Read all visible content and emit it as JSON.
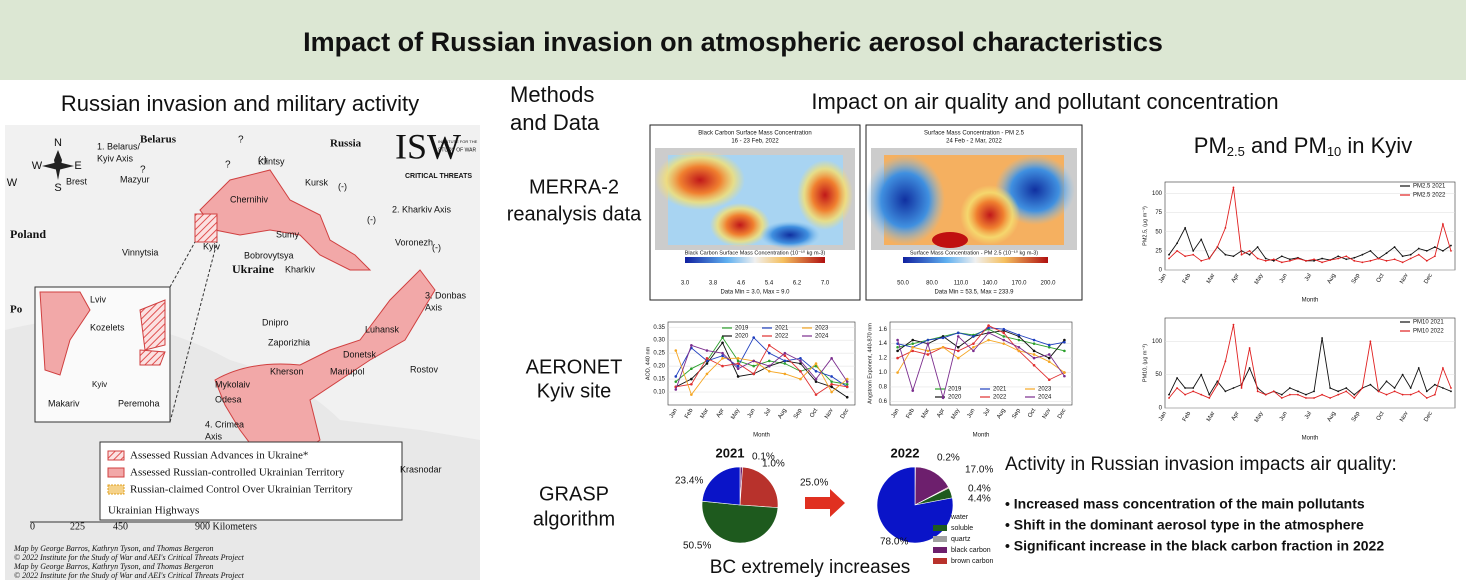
{
  "header": {
    "title": "Impact of Russian invasion on atmospheric aerosol characteristics"
  },
  "sections": {
    "left": "Russian invasion and military activity",
    "methods": [
      "Methods",
      "and Data"
    ],
    "right": "Impact on air quality and pollutant concentration"
  },
  "methods": [
    [
      "MERRA-2",
      "reanalysis data"
    ],
    [
      "AERONET",
      "Kyiv site"
    ],
    [
      "GRASP",
      "algorithm"
    ]
  ],
  "map": {
    "labels": [
      "Belarus",
      "Russia",
      "Poland",
      "Po",
      "Ukraine",
      "Lviv",
      "Vinnytsia",
      "Kyiv",
      "Chernihiv",
      "Sumy",
      "Kharkiv",
      "Kursk",
      "Klintsy",
      "Voronezh",
      "Bobrovytsya",
      "Brest",
      "Mazyur",
      "Dnipro",
      "Zaporizhia",
      "Donetsk",
      "Luhansk",
      "Mariupol",
      "Kherson",
      "Mykolaiv",
      "Odesa",
      "Rostov",
      "Krasnodar",
      "Kozelets",
      "Kyiv",
      "Makariv",
      "Peremoha",
      "?",
      "?",
      "?",
      "(-)",
      "(-)",
      "(-)",
      "(-)"
    ],
    "axes": [
      [
        "1. Belarus/",
        "Kyiv Axis"
      ],
      [
        "2. Kharkiv Axis"
      ],
      [
        "3. Donbas",
        "Axis"
      ],
      [
        "4. Crimea",
        "Axis"
      ]
    ],
    "compass": [
      "N",
      "S",
      "E",
      "W",
      "W"
    ],
    "logo": [
      "ISW",
      "INSTITUTE FOR THE",
      "STUDY OF WAR",
      "CRITICAL THREATS"
    ],
    "legend": [
      "Assessed Russian Advances in Ukraine*",
      "Assessed Russian-controlled Ukrainian Territory",
      "Russian-claimed Control Over Ukrainian Territory",
      "Ukrainian Highways"
    ],
    "scale": [
      "0",
      "225",
      "450",
      "900 Kilometers"
    ],
    "credits": [
      "Map by George Barros, Kathryn Tyson, and Thomas Bergeron",
      "© 2022 Institute for the Study of War and AEI's Critical Threats Project",
      "Map by George Barros, Kathryn Tyson, and Thomas Bergeron",
      "© 2022 Institute for the Study of War and AEI's Critical Threats Project"
    ]
  },
  "heatmaps": [
    {
      "title": "Black Carbon Surface Mass Concentration",
      "subtitle": "16 - 23 Feb, 2022",
      "ticks": [
        "3.0",
        "3.8",
        "4.6",
        "5.4",
        "6.2",
        "7.0"
      ],
      "caption": "Black Carbon Surface Mass Concentration (10⁻¹⁰ kg m-3)",
      "note": "Data Min = 3.0, Max = 9.0"
    },
    {
      "title": "Surface Mass Concentration - PM 2.5",
      "subtitle": "24 Feb - 2 Mar, 2022",
      "ticks": [
        "50.0",
        "80.0",
        "110.0",
        "140.0",
        "170.0",
        "200.0"
      ],
      "caption": "Surface Mass Concentration - PM 2.5 (10⁻¹⁰ kg m-3)",
      "note": "Data Min = 53.5, Max = 233.9"
    }
  ],
  "charts": {
    "aod": {
      "type": "line",
      "ylabel": "AOD, 440 nm",
      "xlabel": "Month",
      "categories": [
        "Jan",
        "Feb",
        "Mar",
        "Apr",
        "May",
        "Jun",
        "Jul",
        "Aug",
        "Sep",
        "Oct",
        "Nov",
        "Dec"
      ],
      "ylim": [
        0.05,
        0.37
      ],
      "yticks": [
        {
          "value": 0.1,
          "label": "0.10"
        },
        {
          "value": 0.15,
          "label": "0.15"
        },
        {
          "value": 0.2,
          "label": "0.20"
        },
        {
          "value": 0.25,
          "label": "0.25"
        },
        {
          "value": 0.3,
          "label": "0.30"
        },
        {
          "value": 0.35,
          "label": "0.35"
        }
      ],
      "series": [
        {
          "name": "2019",
          "color": "#2ca02c",
          "values": [
            0.14,
            0.19,
            0.22,
            0.31,
            0.22,
            0.2,
            0.22,
            0.21,
            0.18,
            0.2,
            0.14,
            0.13
          ]
        },
        {
          "name": "2020",
          "color": "#111111",
          "values": [
            0.12,
            0.15,
            0.21,
            0.29,
            0.16,
            0.17,
            0.2,
            0.22,
            0.21,
            0.14,
            0.12,
            0.08
          ]
        },
        {
          "name": "2021",
          "color": "#1f3fbf",
          "values": [
            0.16,
            0.27,
            0.22,
            0.24,
            0.2,
            0.31,
            0.25,
            0.22,
            0.23,
            0.18,
            0.16,
            0.12
          ]
        },
        {
          "name": "2022",
          "color": "#e03030",
          "values": [
            0.12,
            0.13,
            0.23,
            0.2,
            0.21,
            0.17,
            0.28,
            0.24,
            0.18,
            0.09,
            0.13,
            0.12
          ]
        },
        {
          "name": "2023",
          "color": "#f5a623",
          "values": [
            0.26,
            0.09,
            0.17,
            0.23,
            0.23,
            0.22,
            0.18,
            0.17,
            0.15,
            0.21,
            0.1,
            0.15
          ]
        },
        {
          "name": "2024",
          "color": "#7b2d8e",
          "values": [
            0.11,
            0.28,
            0.26,
            0.25,
            0.19,
            0.22,
            0.2,
            0.25,
            0.22,
            0.15,
            0.23,
            0.14
          ]
        }
      ]
    },
    "angstrom": {
      "type": "line",
      "ylabel": "Angstrom Exponent, 440-870 nm",
      "xlabel": "Month",
      "categories": [
        "Jan",
        "Feb",
        "Mar",
        "Apr",
        "May",
        "Jun",
        "Jul",
        "Aug",
        "Sep",
        "Oct",
        "Nov",
        "Dec"
      ],
      "ylim": [
        0.55,
        1.7
      ],
      "yticks": [
        0.6,
        0.8,
        {
          "value": 1.0,
          "label": "1.0"
        },
        1.2,
        1.4,
        1.6
      ],
      "series": [
        {
          "name": "2019",
          "color": "#2ca02c",
          "values": [
            1.35,
            1.4,
            1.45,
            1.5,
            1.55,
            1.52,
            1.6,
            1.5,
            1.45,
            1.4,
            1.35,
            1.3
          ]
        },
        {
          "name": "2020",
          "color": "#111111",
          "values": [
            1.3,
            1.45,
            1.4,
            1.5,
            1.35,
            1.5,
            1.55,
            1.58,
            1.5,
            1.3,
            1.2,
            1.45
          ]
        },
        {
          "name": "2021",
          "color": "#1f3fbf",
          "values": [
            1.4,
            1.35,
            1.45,
            1.48,
            1.55,
            1.5,
            1.62,
            1.6,
            1.52,
            1.45,
            1.38,
            1.42
          ]
        },
        {
          "name": "2022",
          "color": "#e03030",
          "values": [
            1.2,
            1.3,
            1.25,
            1.35,
            1.3,
            1.4,
            1.65,
            1.55,
            1.3,
            1.1,
            0.9,
            1.0
          ]
        },
        {
          "name": "2023",
          "color": "#f5a623",
          "values": [
            1.0,
            1.35,
            1.3,
            1.35,
            1.2,
            1.35,
            1.45,
            1.4,
            1.3,
            1.25,
            1.15,
            1.0
          ]
        },
        {
          "name": "2024",
          "color": "#7b2d8e",
          "values": [
            1.45,
            0.75,
            1.4,
            0.65,
            1.5,
            1.3,
            1.55,
            1.45,
            1.35,
            1.2,
            1.25,
            0.95
          ]
        }
      ]
    },
    "pm_title": [
      "PM",
      "2.5",
      " and PM",
      "10",
      " in Kyiv"
    ],
    "pm25": {
      "type": "line",
      "ylabel": "PM2.5, (µg m⁻³)",
      "xlabel": "Month",
      "categories": [
        "Jan",
        "Feb",
        "Mar",
        "Apr",
        "May",
        "Jun",
        "Jul",
        "Aug",
        "Sep",
        "Oct",
        "Nov",
        "Dec"
      ],
      "ylim": [
        0,
        115
      ],
      "yticks": [
        0,
        25,
        50,
        75,
        100
      ],
      "series": [
        {
          "name": "PM2.5 2021",
          "color": "#111111",
          "values": [
            [
              20,
              35,
              55
            ],
            [
              25,
              40,
              15
            ],
            [
              30,
              20,
              18
            ],
            [
              25,
              20,
              30
            ],
            [
              15,
              12,
              18
            ],
            [
              14,
              16,
              12
            ],
            [
              12,
              15,
              13
            ],
            [
              18,
              14,
              16
            ],
            [
              20,
              25,
              15
            ],
            [
              22,
              30,
              18
            ],
            [
              20,
              28,
              25
            ],
            [
              30,
              25,
              32
            ]
          ]
        },
        {
          "name": "PM2.5 2022",
          "color": "#e02020",
          "values": [
            [
              15,
              25,
              18
            ],
            [
              20,
              12,
              15
            ],
            [
              30,
              55,
              108
            ],
            [
              20,
              25,
              15
            ],
            [
              12,
              14,
              10
            ],
            [
              12,
              15,
              12
            ],
            [
              14,
              10,
              13
            ],
            [
              15,
              18,
              12
            ],
            [
              10,
              12,
              15
            ],
            [
              12,
              14,
              10
            ],
            [
              15,
              20,
              12
            ],
            [
              18,
              60,
              25
            ]
          ]
        }
      ]
    },
    "pm10": {
      "type": "line",
      "ylabel": "PM10, (µg m⁻³)",
      "xlabel": "Month",
      "categories": [
        "Jan",
        "Feb",
        "Mar",
        "Apr",
        "May",
        "Jun",
        "Jul",
        "Aug",
        "Sep",
        "Oct",
        "Nov",
        "Dec"
      ],
      "ylim": [
        0,
        135
      ],
      "yticks": [
        0,
        50,
        100
      ],
      "series": [
        {
          "name": "PM10 2021",
          "color": "#111111",
          "values": [
            [
              20,
              45,
              30
            ],
            [
              30,
              50,
              20
            ],
            [
              40,
              25,
              30
            ],
            [
              35,
              60,
              30
            ],
            [
              20,
              25,
              20
            ],
            [
              30,
              25,
              20
            ],
            [
              25,
              105,
              30
            ],
            [
              25,
              30,
              20
            ],
            [
              30,
              35,
              25
            ],
            [
              40,
              30,
              50
            ],
            [
              30,
              60,
              25
            ],
            [
              35,
              30,
              25
            ]
          ]
        },
        {
          "name": "PM10 2022",
          "color": "#e02020",
          "values": [
            [
              15,
              30,
              20
            ],
            [
              25,
              20,
              15
            ],
            [
              35,
              70,
              125
            ],
            [
              30,
              90,
              25
            ],
            [
              20,
              25,
              15
            ],
            [
              20,
              20,
              15
            ],
            [
              15,
              20,
              15
            ],
            [
              20,
              25,
              15
            ],
            [
              30,
              100,
              25
            ],
            [
              20,
              25,
              20
            ],
            [
              20,
              25,
              15
            ],
            [
              20,
              60,
              30
            ]
          ]
        }
      ]
    }
  },
  "composition": {
    "type": "pie",
    "categories": [
      "quartz",
      "black carbon",
      "brown carbon",
      "soluble",
      "water"
    ],
    "colors": [
      "#a0a0a0",
      "#6d1f6d",
      "#b8322c",
      "#1e5a1e",
      "#0a14c8"
    ],
    "pies": [
      {
        "title": "2021",
        "values": [
          0.1,
          1.0,
          25.0,
          50.5,
          23.4
        ],
        "value_labels": [
          "0.1%",
          "1.0%",
          "25.0%",
          "50.5%",
          "23.4%"
        ]
      },
      {
        "title": "2022",
        "values": [
          0.2,
          17.0,
          0.4,
          4.4,
          78.0
        ],
        "value_labels": [
          "0.2%",
          "17.0%",
          "0.4%",
          "4.4%",
          "78.0%"
        ]
      }
    ],
    "caption": "BC extremely increases"
  },
  "findings": {
    "title": "Activity in Russian invasion impacts air quality:",
    "bullets": [
      "• Increased mass concentration of the main pollutants",
      "• Shift in the dominant aerosol type in the atmosphere",
      "• Significant increase in the black carbon fraction in 2022"
    ]
  }
}
